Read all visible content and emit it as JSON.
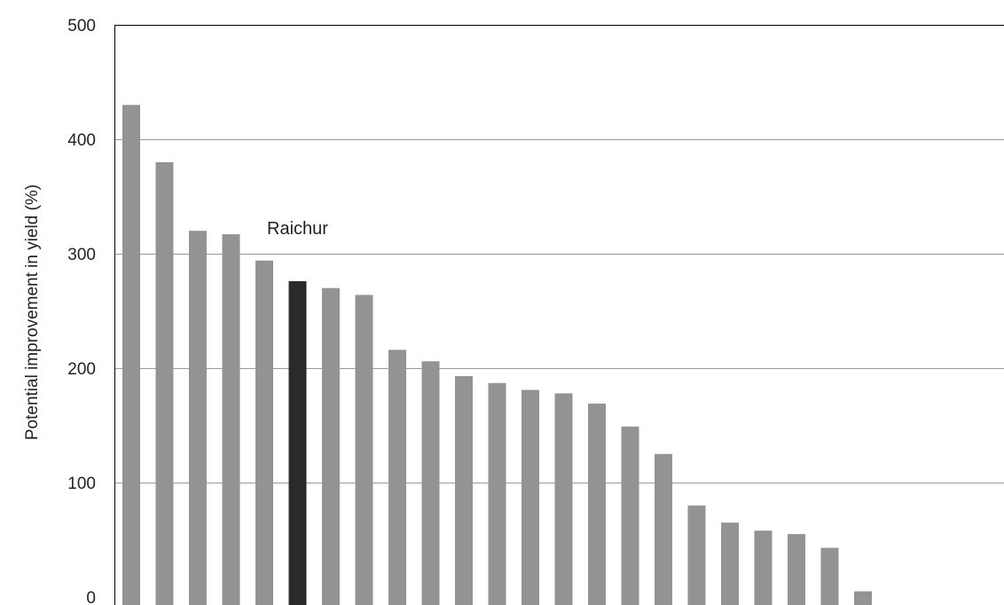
{
  "chart_data": {
    "type": "bar",
    "title": "",
    "xlabel": "",
    "ylabel": "Potential improvement in yield (%)",
    "ylim": [
      0,
      500
    ],
    "yticks": [
      0,
      100,
      200,
      300,
      400,
      500
    ],
    "grid": true,
    "values": [
      430,
      380,
      320,
      317,
      294,
      276,
      270,
      264,
      216,
      206,
      193,
      187,
      181,
      178,
      169,
      149,
      125,
      80,
      65,
      58,
      55,
      43,
      5
    ],
    "highlight_index": 5,
    "annotations": [
      {
        "text": "Raichur",
        "bar_index": 5
      }
    ],
    "colors": {
      "bar": "#939393",
      "highlight": "#2a2a2a"
    }
  }
}
